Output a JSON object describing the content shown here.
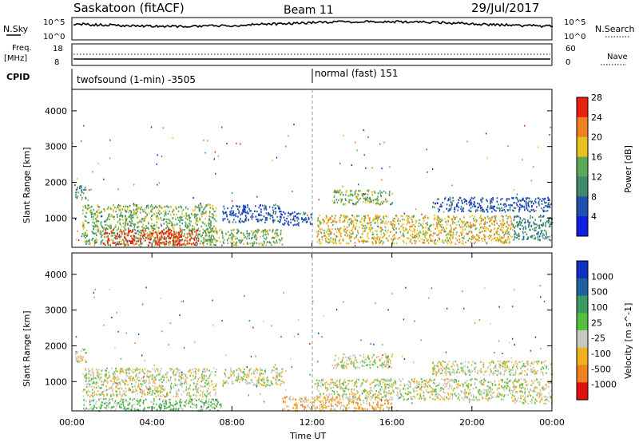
{
  "header": {
    "station": "Saskatoon (fitACF)",
    "beam": "Beam 11",
    "date": "29/Jul/2017"
  },
  "top_panels": {
    "nsky_label": "N.Sky",
    "nsearch_label": "N.Search",
    "nsky_ticks": [
      "10^5",
      "10^0"
    ],
    "nsearch_ticks": [
      "10^5",
      "10^0"
    ],
    "freq_label_1": "Freq.",
    "freq_label_2": "[MHz]",
    "freq_ticks": [
      "18",
      "8"
    ],
    "nave_label": "Nave",
    "nave_ticks": [
      "60",
      "0"
    ],
    "cpid_label": "CPID",
    "cpid_mode_1": "twofsound (1-min) -3505",
    "cpid_mode_2": "normal (fast) 151"
  },
  "chart_data": [
    {
      "type": "heatmap",
      "title": "Power",
      "ylabel": "Slant Range [km]",
      "ylim": [
        180,
        4600
      ],
      "yticks": [
        1000,
        2000,
        3000,
        4000
      ],
      "xlim": [
        0,
        24
      ],
      "colorbar_label": "Power [dB]",
      "colorbar_ticks": [
        "4",
        "8",
        "12",
        "16",
        "20",
        "24",
        "28"
      ],
      "colors": [
        "#1020e0",
        "#2050b0",
        "#3e8a6a",
        "#5aa95a",
        "#e8c020",
        "#f08020",
        "#e82010"
      ],
      "scatter_regions": [
        {
          "t0": 0.1,
          "t1": 0.7,
          "r0": 1550,
          "r1": 1950,
          "level": 2
        },
        {
          "t0": 0.5,
          "t1": 7.2,
          "r0": 250,
          "r1": 1400,
          "level": 3
        },
        {
          "t0": 1.5,
          "t1": 6.3,
          "r0": 250,
          "r1": 700,
          "level": 6
        },
        {
          "t0": 6.5,
          "t1": 10.5,
          "r0": 250,
          "r1": 700,
          "level": 3
        },
        {
          "t0": 7.5,
          "t1": 10.5,
          "r0": 900,
          "r1": 1400,
          "level": 1
        },
        {
          "t0": 10.5,
          "t1": 12.0,
          "r0": 800,
          "r1": 1200,
          "level": 1
        },
        {
          "t0": 12.2,
          "t1": 22.0,
          "r0": 300,
          "r1": 1100,
          "level": 4
        },
        {
          "t0": 13.0,
          "t1": 16.0,
          "r0": 1400,
          "r1": 1800,
          "level": 3
        },
        {
          "t0": 18.0,
          "t1": 24.0,
          "r0": 1200,
          "r1": 1600,
          "level": 1
        },
        {
          "t0": 22.0,
          "t1": 24.0,
          "r0": 400,
          "r1": 1100,
          "level": 2
        }
      ]
    },
    {
      "type": "heatmap",
      "title": "Velocity",
      "ylabel": "Slant Range [km]",
      "ylim": [
        180,
        4600
      ],
      "yticks": [
        1000,
        2000,
        3000,
        4000
      ],
      "xlim": [
        0,
        24
      ],
      "xticks": [
        "00:00",
        "04:00",
        "08:00",
        "12:00",
        "16:00",
        "20:00",
        "00:00"
      ],
      "xlabel": "Time UT",
      "colorbar_label": "Velocity [m s^-1]",
      "colorbar_ticks": [
        "1000",
        "500",
        "100",
        "25",
        "-25",
        "-100",
        "-500",
        "-1000"
      ],
      "colors": [
        "#1030c0",
        "#2060a0",
        "#3a9a60",
        "#55c040",
        "#c8c8c0",
        "#f0b020",
        "#f08020",
        "#e01010"
      ],
      "scatter_regions": [
        {
          "t0": 0.1,
          "t1": 0.7,
          "r0": 1550,
          "r1": 1950,
          "level": 4
        },
        {
          "t0": 0.5,
          "t1": 7.2,
          "r0": 600,
          "r1": 1400,
          "level": 4
        },
        {
          "t0": 0.5,
          "t1": 7.5,
          "r0": 200,
          "r1": 550,
          "level": 3
        },
        {
          "t0": 7.5,
          "t1": 10.5,
          "r0": 900,
          "r1": 1400,
          "level": 4
        },
        {
          "t0": 10.5,
          "t1": 16.0,
          "r0": 200,
          "r1": 600,
          "level": 5
        },
        {
          "t0": 12.2,
          "t1": 22.0,
          "r0": 500,
          "r1": 1100,
          "level": 4
        },
        {
          "t0": 13.0,
          "t1": 16.0,
          "r0": 1400,
          "r1": 1800,
          "level": 4
        },
        {
          "t0": 18.0,
          "t1": 24.0,
          "r0": 1200,
          "r1": 1600,
          "level": 4
        },
        {
          "t0": 22.0,
          "t1": 24.0,
          "r0": 400,
          "r1": 1100,
          "level": 4
        }
      ]
    }
  ]
}
